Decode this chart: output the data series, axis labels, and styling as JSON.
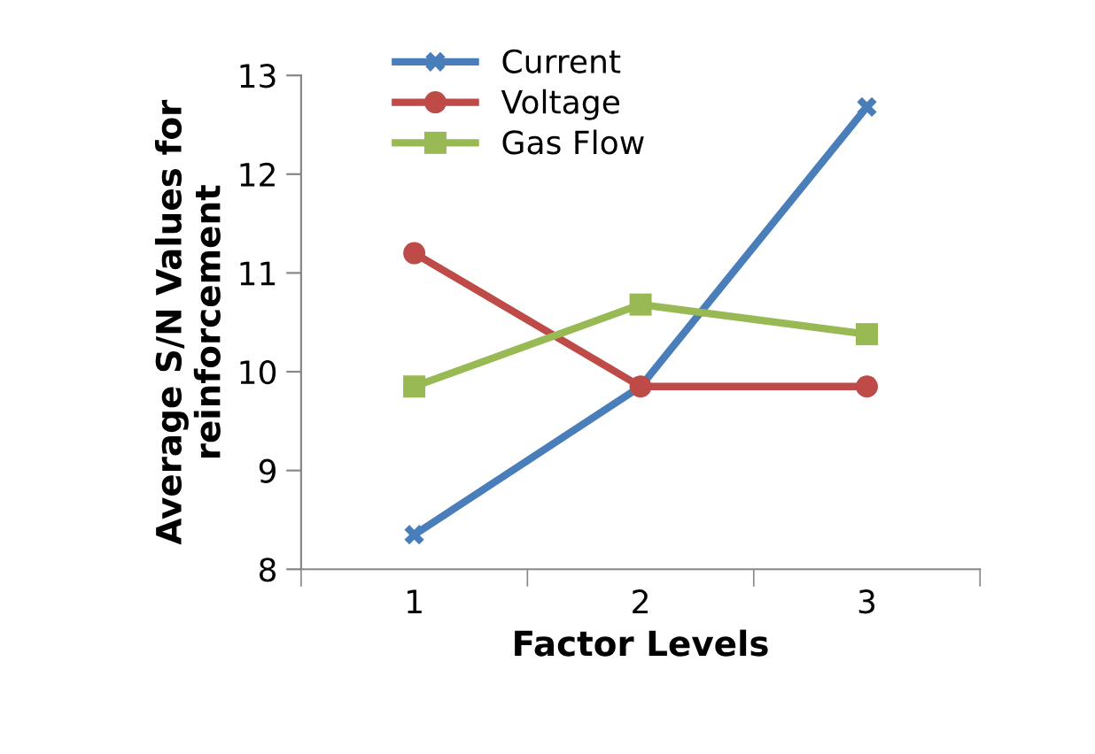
{
  "chart_data": {
    "type": "line",
    "xlabel": "Factor Levels",
    "ylabel": "Average S/N Values for\nreinforcement",
    "categories": [
      "1",
      "2",
      "3"
    ],
    "series": [
      {
        "name": "Current",
        "color": "#4a7ebb",
        "marker": "cross",
        "values": [
          8.35,
          9.85,
          12.68
        ]
      },
      {
        "name": "Voltage",
        "color": "#be4b48",
        "marker": "circle",
        "values": [
          11.2,
          9.85,
          9.85
        ]
      },
      {
        "name": "Gas Flow",
        "color": "#98b954",
        "marker": "square",
        "values": [
          9.85,
          10.68,
          10.38
        ]
      }
    ],
    "ylim": [
      8,
      13
    ],
    "yticks": [
      8,
      9,
      10,
      11,
      12,
      13
    ],
    "grid": false,
    "legend": "top left"
  }
}
